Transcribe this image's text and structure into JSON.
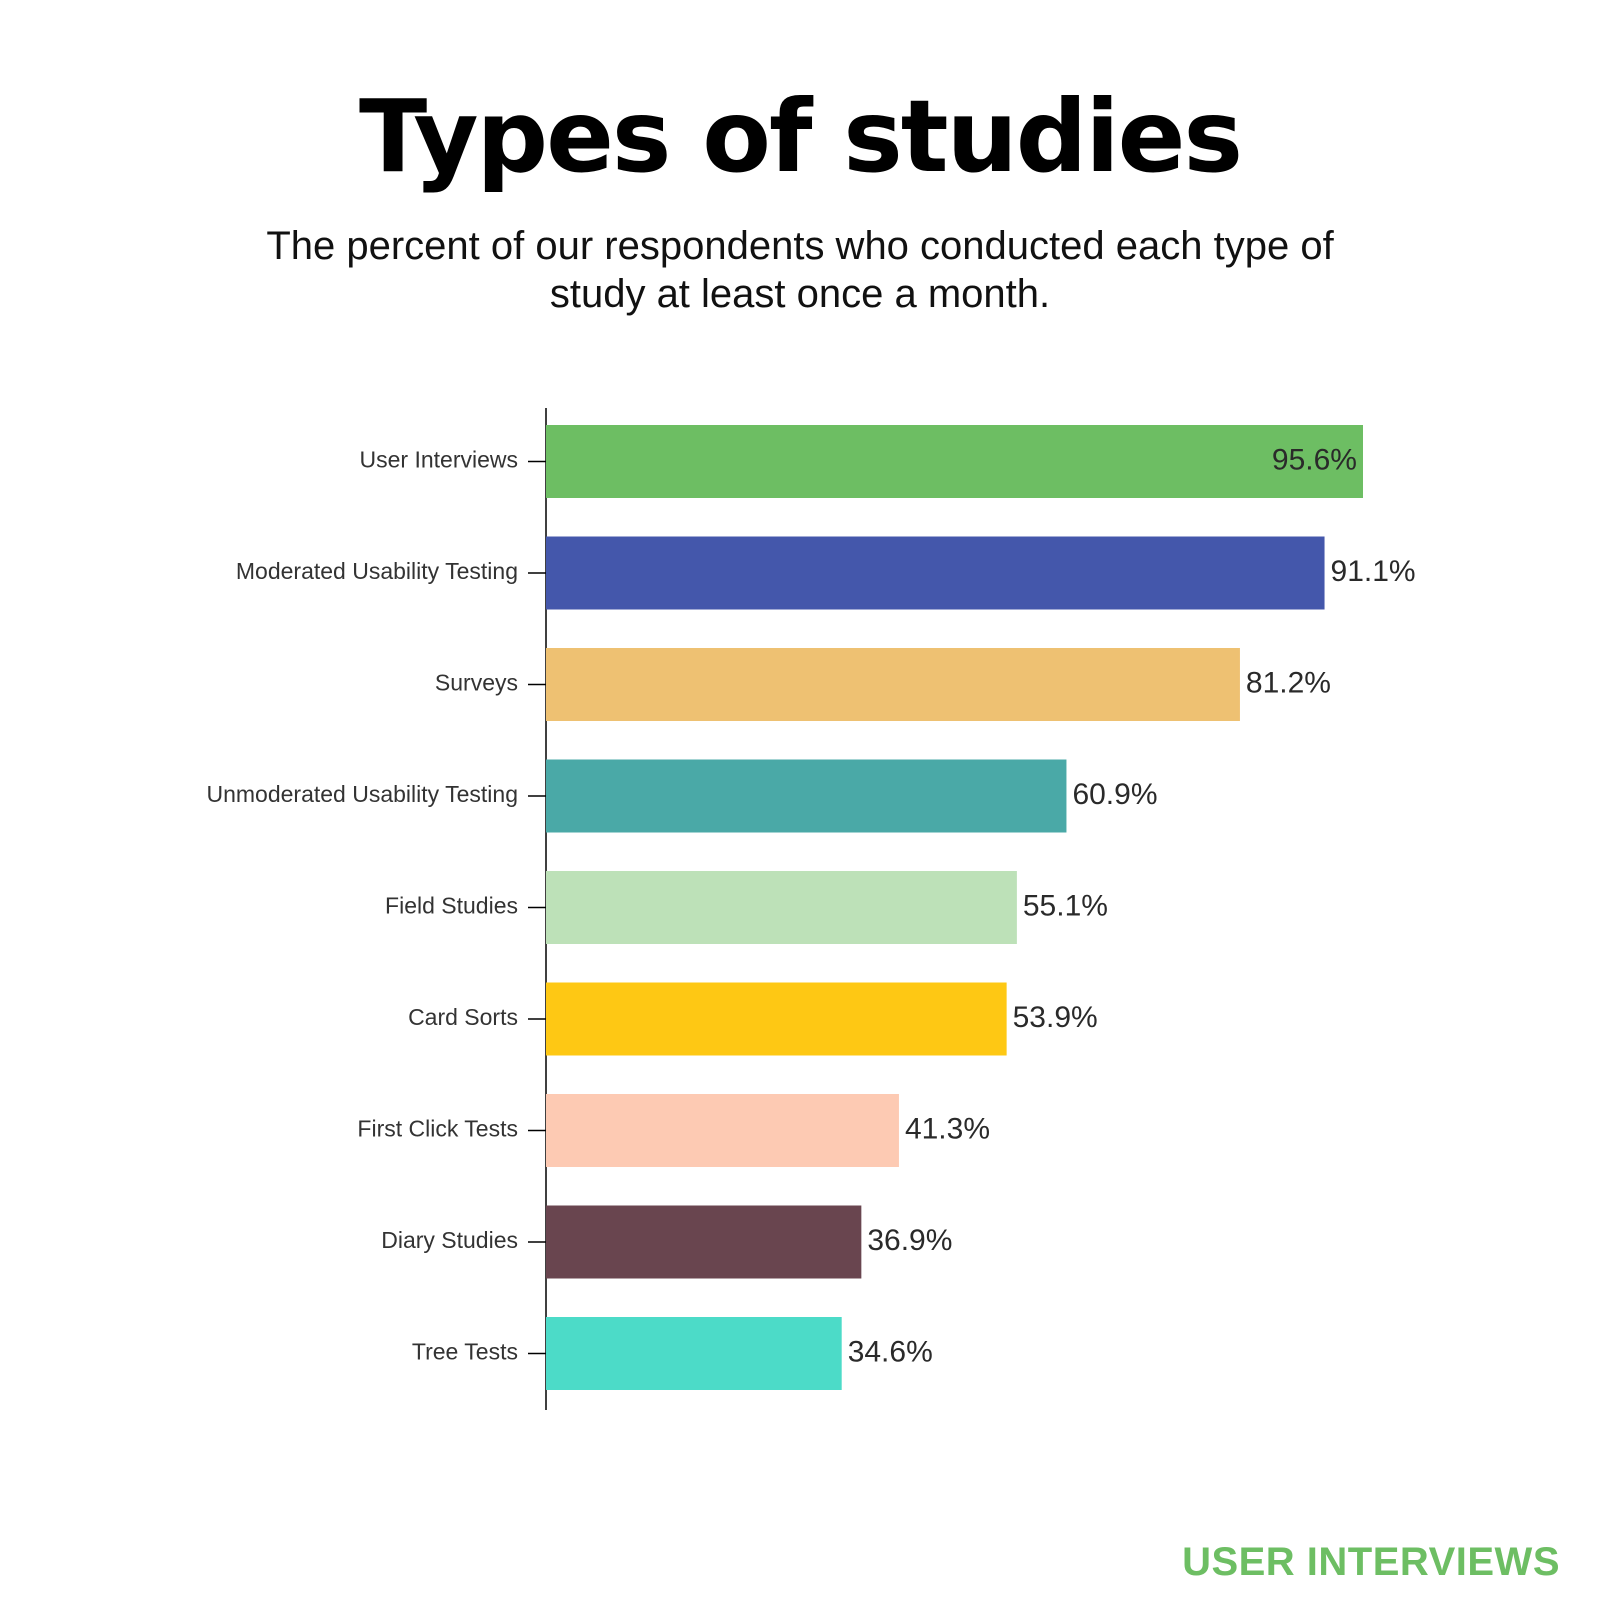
{
  "title": "Types of studies",
  "subtitle": "The percent of our respondents who conducted each type of study at least once a month.",
  "brand": "USER INTERVIEWS",
  "chart_data": {
    "type": "bar",
    "orientation": "horizontal",
    "title": "Types of studies",
    "subtitle": "The percent of our respondents who conducted each type of study at least once a month.",
    "categories": [
      "User Interviews",
      "Moderated Usability Testing",
      "Surveys",
      "Unmoderated Usability Testing",
      "Field Studies",
      "Card Sorts",
      "First Click Tests",
      "Diary Studies",
      "Tree Tests"
    ],
    "values": [
      95.6,
      91.1,
      81.2,
      60.9,
      55.1,
      53.9,
      41.3,
      36.9,
      34.6
    ],
    "value_labels": [
      "95.6%",
      "91.1%",
      "81.2%",
      "60.9%",
      "55.1%",
      "53.9%",
      "41.3%",
      "36.9%",
      "34.6%"
    ],
    "colors": [
      "#6dbe63",
      "#4457ab",
      "#eec172",
      "#4aa9a7",
      "#bde1b8",
      "#fec814",
      "#fdcab3",
      "#69454f",
      "#4cdbc8"
    ],
    "xlim": [
      0,
      100
    ],
    "grid": false,
    "legend": "none"
  }
}
